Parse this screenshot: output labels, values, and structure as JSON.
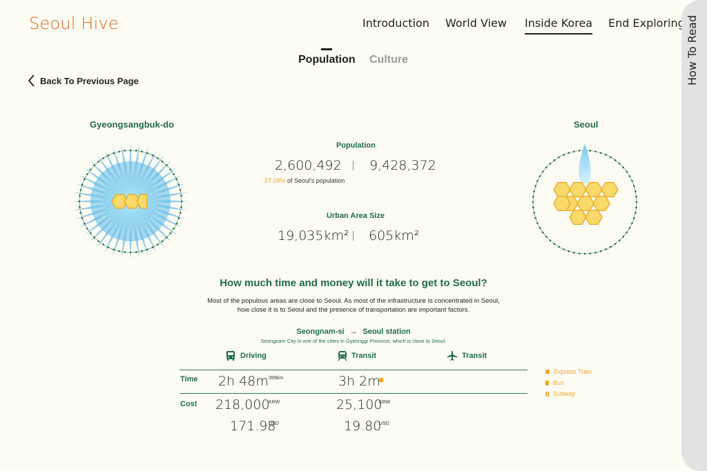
{
  "app": {
    "logo": "Seoul Hive"
  },
  "nav": {
    "items": [
      {
        "label": "Introduction",
        "active": false
      },
      {
        "label": "World View",
        "active": false
      },
      {
        "label": "Inside Korea",
        "active": true
      },
      {
        "label": "End Exploring",
        "active": false
      }
    ]
  },
  "side_panel": {
    "label": "How To Read"
  },
  "subtabs": {
    "population": "Population",
    "culture": "Culture"
  },
  "back": {
    "label": "Back To Previous Page"
  },
  "left_region": {
    "name": "Gyeongsangbuk-do"
  },
  "right_region": {
    "name": "Seoul"
  },
  "stats": {
    "population_label": "Population",
    "population_left": "2,600,492",
    "population_right": "9,428,372",
    "population_pct": "27.58%",
    "population_note": " of Seoul's population",
    "area_label": "Urban Area Size",
    "area_left": "19,035km²",
    "area_right": "605km²"
  },
  "question": "How much time and money will it take to get to Seoul?",
  "description": {
    "line1": "Most of the populous areas are close to Seoul. As most of the infrastructure is concentrated in Seoul,",
    "line2": "how close it is to Seoul and the presence of transportation are important factors."
  },
  "route": {
    "from": "Seongnam-si",
    "arrow": "→",
    "to": "Seoul station",
    "note": "Seongnam City is one of the cities in Gyeonggi Province, which is close to Seoul."
  },
  "modes": {
    "driving": "Driving",
    "transit": "Transit",
    "flight": "Transit"
  },
  "table": {
    "time_label": "Time",
    "cost_label": "Cost",
    "driving_time": "2h 48m",
    "driving_distance": "399km",
    "transit_time": "3h 2m",
    "driving_cost_krw": "218,000",
    "transit_cost_krw": "25,100",
    "krw": "KRW",
    "driving_cost_usd": "171.98",
    "transit_cost_usd": "19.80",
    "usd": "USD"
  },
  "legend": {
    "express": "Express Train",
    "bus": "Bus",
    "subway": "Subway"
  },
  "colors": {
    "accent_orange": "#d9651a",
    "green": "#1e6b47",
    "gold": "#f0a826",
    "blue": "#3aa0e0"
  }
}
